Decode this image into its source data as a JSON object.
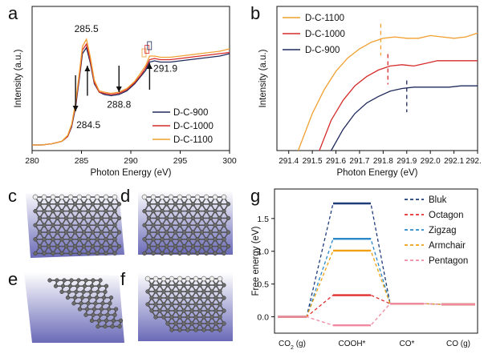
{
  "panel_labels": {
    "a": "a",
    "b": "b",
    "c": "c",
    "d": "d",
    "e": "e",
    "f": "f",
    "g": "g"
  },
  "colors": {
    "d900": "#1f2a5c",
    "d1000": "#d62a2a",
    "d1100": "#f0a030",
    "bluk": "#1f3c7a",
    "octagon": "#e03030",
    "zigzag": "#2a88c8",
    "armchair": "#f0a010",
    "pentagon": "#f08aa0",
    "struct_bg_top": "#ffffff",
    "struct_bg_bottom": "#6a6ab8"
  },
  "chart_data": [
    {
      "id": "a",
      "type": "line",
      "xlabel": "Photon Energy (eV)",
      "ylabel": "Intensity (a.u.)",
      "xlim": [
        280,
        300
      ],
      "xticks": [
        "280",
        "285",
        "290",
        "295",
        "300"
      ],
      "legend_position": "bottom-right",
      "series": [
        {
          "name": "D-C-900",
          "color": "#1f2a5c",
          "x": [
            280,
            281,
            282,
            283,
            283.6,
            284.0,
            284.4,
            284.8,
            285.1,
            285.5,
            285.9,
            286.3,
            286.8,
            287.3,
            288.0,
            288.8,
            289.6,
            290.4,
            291.0,
            291.5,
            291.9,
            292.4,
            293,
            294,
            295,
            296,
            297,
            298,
            299,
            300
          ],
          "y": [
            0.02,
            0.02,
            0.03,
            0.05,
            0.09,
            0.17,
            0.33,
            0.58,
            0.78,
            0.83,
            0.7,
            0.53,
            0.46,
            0.44,
            0.43,
            0.44,
            0.47,
            0.53,
            0.59,
            0.64,
            0.71,
            0.72,
            0.71,
            0.71,
            0.72,
            0.73,
            0.74,
            0.75,
            0.76,
            0.78
          ]
        },
        {
          "name": "D-C-1000",
          "color": "#d62a2a",
          "x": [
            280,
            281,
            282,
            283,
            283.6,
            284.0,
            284.4,
            284.8,
            285.1,
            285.5,
            285.9,
            286.3,
            286.8,
            287.3,
            288.0,
            288.8,
            289.6,
            290.4,
            291.0,
            291.5,
            291.9,
            292.4,
            293,
            294,
            295,
            296,
            297,
            298,
            299,
            300
          ],
          "y": [
            0.02,
            0.02,
            0.03,
            0.05,
            0.09,
            0.18,
            0.35,
            0.6,
            0.81,
            0.86,
            0.72,
            0.54,
            0.46,
            0.45,
            0.44,
            0.45,
            0.48,
            0.54,
            0.6,
            0.66,
            0.73,
            0.74,
            0.73,
            0.73,
            0.74,
            0.75,
            0.76,
            0.77,
            0.78,
            0.79
          ]
        },
        {
          "name": "D-C-1100",
          "color": "#f0a030",
          "x": [
            280,
            281,
            282,
            283,
            283.6,
            284.0,
            284.4,
            284.8,
            285.1,
            285.5,
            285.9,
            286.3,
            286.8,
            287.3,
            288.0,
            288.8,
            289.6,
            290.4,
            291.0,
            291.5,
            291.9,
            292.4,
            293,
            294,
            295,
            296,
            297,
            298,
            299,
            300
          ],
          "y": [
            0.02,
            0.02,
            0.03,
            0.05,
            0.1,
            0.19,
            0.37,
            0.63,
            0.84,
            0.9,
            0.75,
            0.56,
            0.47,
            0.46,
            0.45,
            0.46,
            0.49,
            0.55,
            0.62,
            0.68,
            0.76,
            0.76,
            0.75,
            0.75,
            0.76,
            0.77,
            0.78,
            0.79,
            0.8,
            0.82
          ]
        }
      ],
      "annotations": [
        {
          "text": "285.5",
          "x": 285.5,
          "y": 0.96
        },
        {
          "text": "291.9",
          "x": 293.5,
          "y": 0.63
        },
        {
          "text": "288.8",
          "x": 288.8,
          "y": 0.33
        },
        {
          "text": "284.5",
          "x": 285.7,
          "y": 0.16
        }
      ]
    },
    {
      "id": "b",
      "type": "line",
      "xlabel": "Photon Energy (eV)",
      "ylabel": "Intensity (a.u.)",
      "xlim": [
        291.35,
        292.2
      ],
      "xticks": [
        "291.4",
        "291.5",
        "291.6",
        "291.7",
        "291.8",
        "291.9",
        "292.0",
        "292.1",
        "292."
      ],
      "legend_position": "top-left",
      "series": [
        {
          "name": "D-C-1100",
          "color": "#f0a030",
          "x": [
            291.44,
            291.5,
            291.55,
            291.6,
            291.65,
            291.7,
            291.75,
            291.8,
            291.85,
            291.9,
            291.95,
            292.0,
            292.05,
            292.1,
            292.15,
            292.2
          ],
          "y": [
            0.0,
            0.28,
            0.46,
            0.6,
            0.7,
            0.77,
            0.82,
            0.85,
            0.86,
            0.85,
            0.85,
            0.87,
            0.86,
            0.85,
            0.86,
            0.89
          ]
        },
        {
          "name": "D-C-1000",
          "color": "#d62a2a",
          "x": [
            291.53,
            291.58,
            291.63,
            291.68,
            291.73,
            291.78,
            291.83,
            291.88,
            291.93,
            291.98,
            292.03,
            292.08,
            292.13,
            292.2
          ],
          "y": [
            0.0,
            0.23,
            0.38,
            0.49,
            0.56,
            0.61,
            0.64,
            0.65,
            0.64,
            0.66,
            0.68,
            0.68,
            0.68,
            0.68
          ]
        },
        {
          "name": "D-C-900",
          "color": "#1f2a5c",
          "x": [
            291.58,
            291.63,
            291.68,
            291.73,
            291.78,
            291.83,
            291.88,
            291.93,
            291.98,
            292.03,
            292.08,
            292.13,
            292.2
          ],
          "y": [
            0.0,
            0.16,
            0.28,
            0.36,
            0.41,
            0.45,
            0.47,
            0.48,
            0.48,
            0.48,
            0.48,
            0.49,
            0.49
          ]
        }
      ],
      "markers": [
        {
          "x": 291.79,
          "y0": 0.72,
          "y1": 0.96,
          "color": "#f0a030"
        },
        {
          "x": 291.82,
          "y0": 0.5,
          "y1": 0.73,
          "color": "#d62a2a"
        },
        {
          "x": 291.9,
          "y0": 0.29,
          "y1": 0.53,
          "color": "#1f2a5c"
        }
      ]
    },
    {
      "id": "g",
      "type": "line",
      "ylabel": "Free energy (eV)",
      "ylim": [
        -0.25,
        1.95
      ],
      "yticks": [
        "0.0",
        "0.5",
        "1.0",
        "1.5"
      ],
      "categories": [
        "CO",
        "COOH*",
        "CO*",
        "CO (g)"
      ],
      "category_subscript": {
        "index": 0,
        "sub": "2",
        "suffix": " (g)"
      },
      "legend_position": "top-right",
      "series": [
        {
          "name": "Bluk",
          "color": "#1f3c7a",
          "values": [
            0.0,
            1.73,
            0.2,
            0.19
          ]
        },
        {
          "name": "Octagon",
          "color": "#e03030",
          "values": [
            0.0,
            0.33,
            0.2,
            0.19
          ]
        },
        {
          "name": "Zigzag",
          "color": "#2a88c8",
          "values": [
            0.0,
            1.19,
            0.2,
            0.19
          ]
        },
        {
          "name": "Armchair",
          "color": "#f0a010",
          "values": [
            0.0,
            1.01,
            0.2,
            0.19
          ]
        },
        {
          "name": "Pentagon",
          "color": "#f08aa0",
          "values": [
            0.0,
            -0.13,
            0.2,
            0.19
          ]
        }
      ]
    }
  ]
}
